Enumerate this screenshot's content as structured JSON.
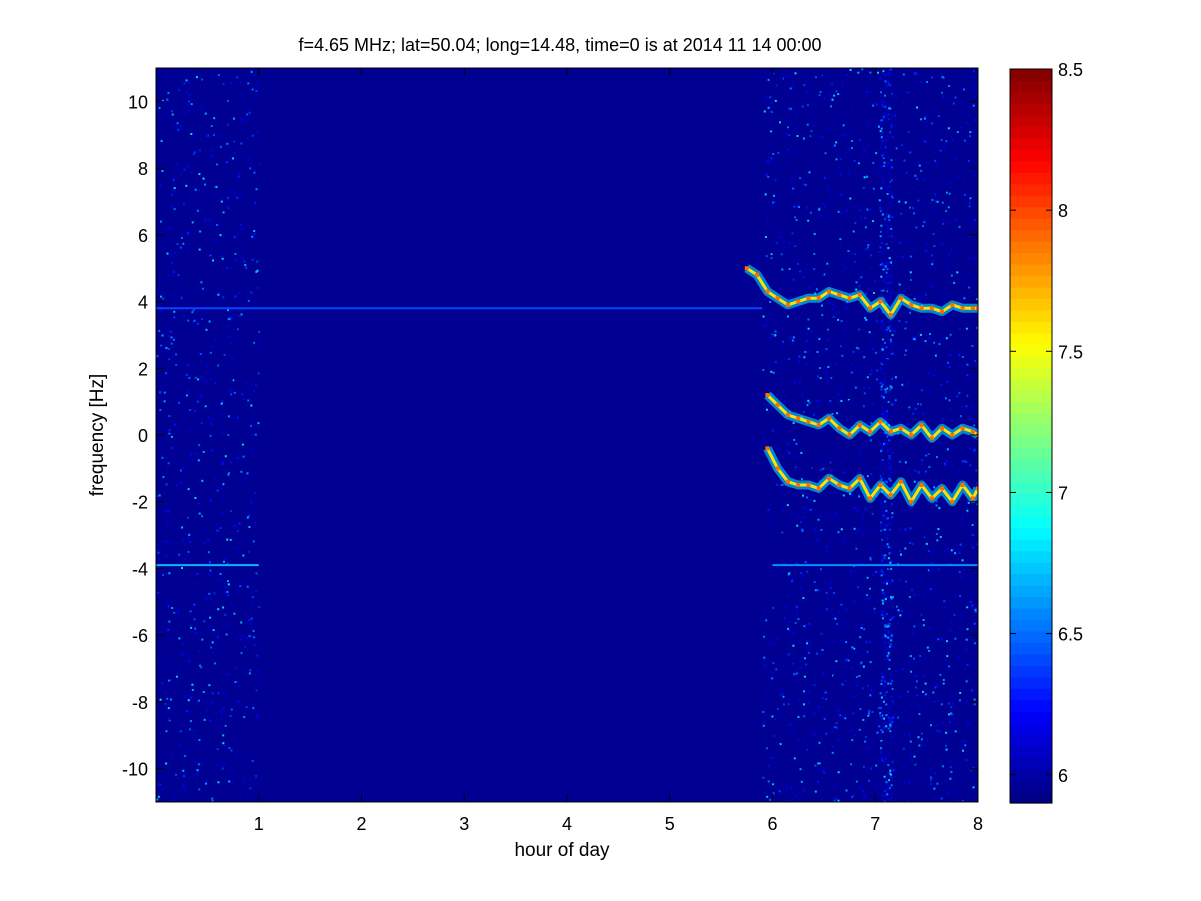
{
  "chart_data": {
    "type": "heatmap",
    "title": "f=4.65 MHz;  lat=50.04; long=14.48, time=0 is at 2014 11 14 00:00",
    "xlabel": "hour of day",
    "ylabel": "frequency [Hz]",
    "xlim": [
      0,
      8
    ],
    "ylim": [
      -11,
      11
    ],
    "x_ticks": [
      1,
      2,
      3,
      4,
      5,
      6,
      7,
      8
    ],
    "y_ticks": [
      -10,
      -8,
      -6,
      -4,
      -2,
      0,
      2,
      4,
      6,
      8,
      10
    ],
    "colorbar": {
      "colormap": "jet",
      "range": [
        5.9,
        8.5
      ],
      "ticks": [
        6,
        6.5,
        7,
        7.5,
        8,
        8.5
      ],
      "tick_labels": [
        "6",
        "6.5",
        "7",
        "7.5",
        "8",
        "8.5"
      ]
    },
    "background_value": 5.95,
    "noisy_time_spans_hours": [
      [
        0,
        1
      ],
      [
        5.9,
        8
      ]
    ],
    "strong_noise_column_hours": 7.1,
    "constant_lines_hz": [
      {
        "freq": 3.8,
        "from": 0,
        "to": 5.9,
        "level": 6.4
      },
      {
        "freq": -3.9,
        "from": 0,
        "to": 1,
        "level": 6.7
      },
      {
        "freq": -3.9,
        "from": 6.0,
        "to": 8,
        "level": 6.6
      }
    ],
    "traces": [
      {
        "x": [
          5.75,
          5.85,
          5.95,
          6.05,
          6.15,
          6.25,
          6.35,
          6.45,
          6.55,
          6.65,
          6.75,
          6.85,
          6.95,
          7.05,
          7.15,
          7.25,
          7.35,
          7.45,
          7.55,
          7.65,
          7.75,
          7.85,
          7.95,
          8.0
        ],
        "y": [
          5.0,
          4.8,
          4.3,
          4.1,
          3.9,
          4.0,
          4.1,
          4.1,
          4.3,
          4.2,
          4.1,
          4.2,
          3.8,
          4.0,
          3.6,
          4.1,
          3.9,
          3.8,
          3.8,
          3.7,
          3.9,
          3.8,
          3.8,
          3.8
        ]
      },
      {
        "x": [
          5.95,
          6.05,
          6.15,
          6.25,
          6.35,
          6.45,
          6.55,
          6.65,
          6.75,
          6.85,
          6.95,
          7.05,
          7.15,
          7.25,
          7.35,
          7.45,
          7.55,
          7.65,
          7.75,
          7.85,
          7.95,
          8.0
        ],
        "y": [
          1.2,
          0.9,
          0.6,
          0.5,
          0.4,
          0.3,
          0.5,
          0.2,
          0.0,
          0.3,
          0.1,
          0.4,
          0.1,
          0.2,
          0.0,
          0.3,
          -0.1,
          0.2,
          0.0,
          0.2,
          0.1,
          0.0
        ]
      },
      {
        "x": [
          5.95,
          6.05,
          6.15,
          6.25,
          6.35,
          6.45,
          6.55,
          6.65,
          6.75,
          6.85,
          6.95,
          7.05,
          7.15,
          7.25,
          7.35,
          7.45,
          7.55,
          7.65,
          7.75,
          7.85,
          7.95,
          8.0
        ],
        "y": [
          -0.4,
          -1.0,
          -1.4,
          -1.5,
          -1.5,
          -1.6,
          -1.3,
          -1.5,
          -1.6,
          -1.3,
          -1.9,
          -1.5,
          -1.8,
          -1.4,
          -2.0,
          -1.5,
          -1.9,
          -1.6,
          -2.0,
          -1.5,
          -1.9,
          -1.6
        ]
      }
    ]
  }
}
